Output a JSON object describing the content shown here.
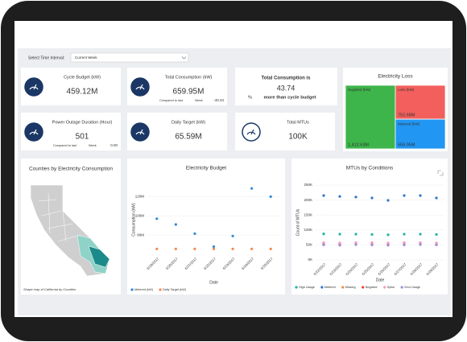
{
  "filter": {
    "label": "Select Time Interval:",
    "value": "Current Week"
  },
  "kpis": [
    {
      "title": "Cycle Budget (kW)",
      "value": "459.12M"
    },
    {
      "title": "Total Consumption (kW)",
      "value": "659.95M",
      "compare": "Compared to last",
      "period": "Week",
      "delta": "-40.34",
      "delta_color": "#e0403a"
    },
    {
      "title": "Power Outage Duration (Hour)",
      "value": "501",
      "compare": "Compared to last",
      "period": "Week",
      "delta": "0.00",
      "delta_color": "#2e8bd8"
    },
    {
      "title": "Daily Target (kW)",
      "value": "65.59M"
    },
    {
      "title": "Total MTUs",
      "value": "100K"
    }
  ],
  "summary": {
    "title": "Total Consumption is",
    "value": "43.74",
    "unit": "%",
    "text": "more than cycle budget"
  },
  "map": {
    "title": "Counties by Electricity Consumption",
    "caption": "Shape map of California by Counties"
  },
  "chart_data": [
    {
      "type": "treemap",
      "title": "Electricity Loss",
      "categories": [
        "Supplied (kW)",
        "Loss (kW)",
        "Metered (kW)"
      ],
      "values": [
        1412.63,
        752.68,
        659.95
      ],
      "value_labels": [
        "1,412.63M",
        "752.68M",
        "659.95M"
      ],
      "colors": [
        "#3db54a",
        "#f25f5c",
        "#2196f3"
      ]
    },
    {
      "type": "line",
      "title": "Electricity Budget",
      "x_label": "Date",
      "y_label": "Consumption (kW)",
      "categories": [
        "6/19/2017",
        "6/20/2017",
        "6/21/2017",
        "6/22/2017",
        "6/23/2017",
        "6/24/2017",
        "6/25/2017"
      ],
      "series": [
        {
          "name": "Metered (kW)",
          "color": "#2e8bd8",
          "values": [
            97,
            91,
            81.5,
            68,
            79,
            128.5,
            120
          ]
        },
        {
          "name": "Daily Target (kW)",
          "color": "#f5894a",
          "values": [
            65.59,
            65.59,
            65.59,
            65.59,
            65.59,
            65.59,
            65.59
          ]
        }
      ],
      "ylim": [
        60,
        132
      ],
      "yticks": [
        {
          "value": 80,
          "label": "80M"
        },
        {
          "value": 100,
          "label": "100M"
        },
        {
          "value": 120,
          "label": "120M"
        }
      ],
      "grid": true
    },
    {
      "type": "line",
      "title": "MTUs by Conditions",
      "x_label": "Date",
      "y_label": "Count of MTUs",
      "categories": [
        "6/22/2017",
        "6/23/2017",
        "6/24/2017",
        "6/25/2017",
        "6/26/2017",
        "6/27/2017",
        "6/28/2017",
        "6/29/2017"
      ],
      "series": [
        {
          "name": "High Usage",
          "color": "#22b3a0",
          "values": [
            87,
            86,
            86,
            85,
            84,
            86,
            86,
            85
          ]
        },
        {
          "name": "Metered",
          "color": "#2e75c9",
          "values": [
            215,
            212,
            210,
            207,
            199,
            215,
            215,
            207
          ]
        },
        {
          "name": "Missing",
          "color": "#f08a4b",
          "values": [
            56,
            55,
            57,
            56,
            55,
            56,
            57,
            56
          ]
        },
        {
          "name": "Negative",
          "color": "#e8413c",
          "values": [
            53,
            52,
            54,
            53,
            52,
            53,
            54,
            53
          ]
        },
        {
          "name": "Spike",
          "color": "#f49ac1",
          "values": [
            58,
            57,
            58,
            58,
            57,
            58,
            58,
            57
          ]
        },
        {
          "name": "Zero Usage",
          "color": "#9b8fd4",
          "values": [
            50,
            49,
            51,
            50,
            49,
            50,
            51,
            50
          ]
        }
      ],
      "ylim": [
        0,
        250
      ],
      "yticks": [
        {
          "value": 0,
          "label": "0K"
        },
        {
          "value": 50,
          "label": "50K"
        },
        {
          "value": 100,
          "label": "100K"
        },
        {
          "value": 150,
          "label": "150K"
        },
        {
          "value": 200,
          "label": "200K"
        },
        {
          "value": 250,
          "label": "250K"
        }
      ],
      "grid": true
    }
  ]
}
